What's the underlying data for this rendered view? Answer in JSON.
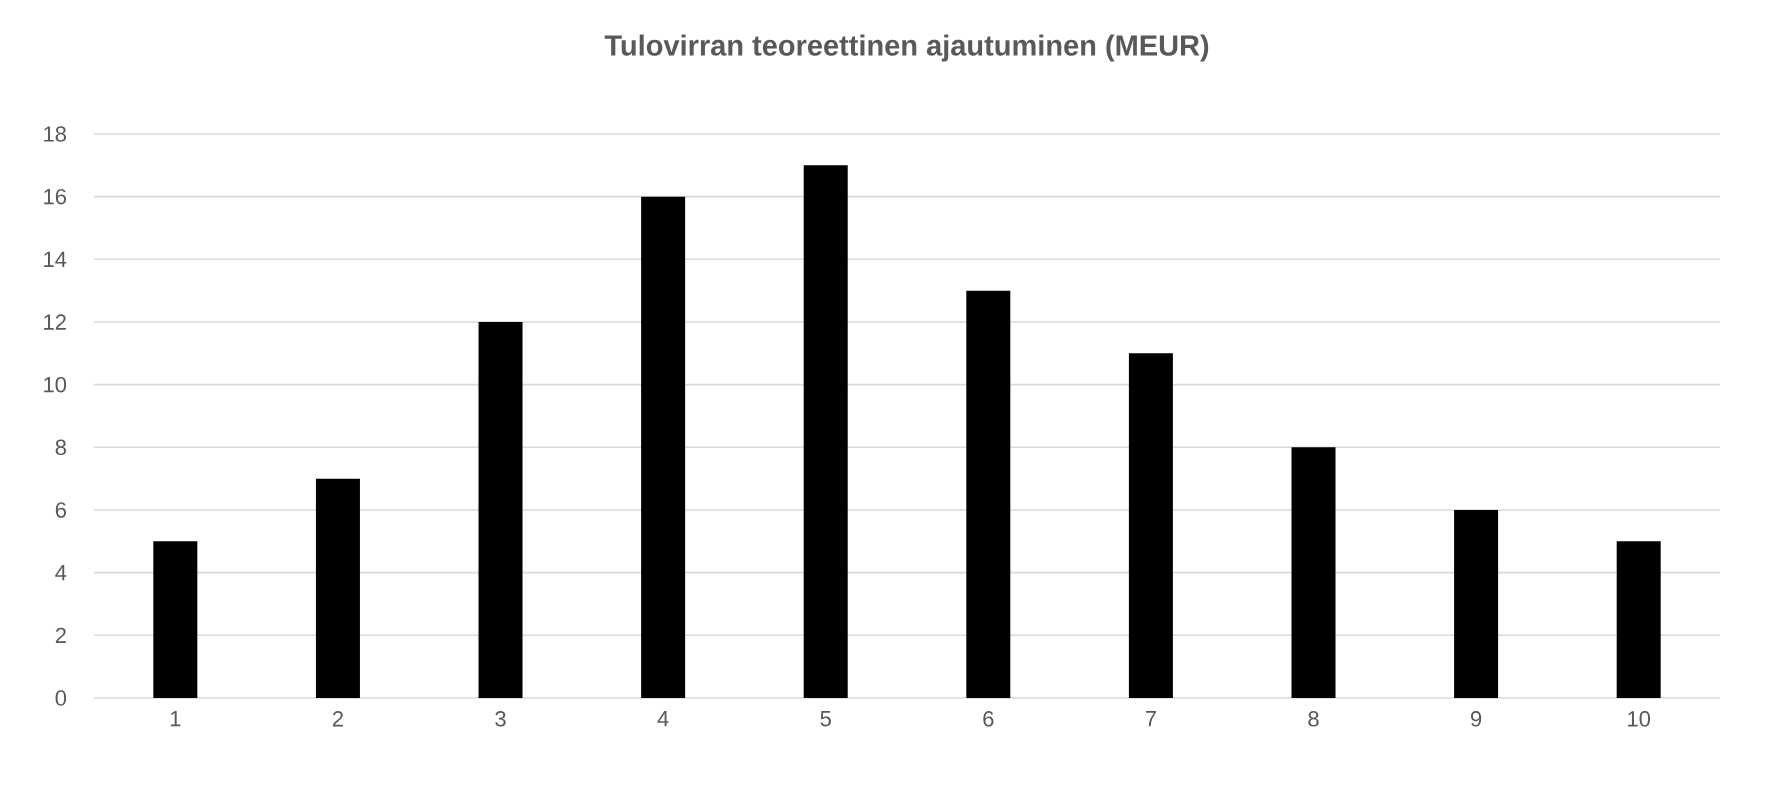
{
  "chart_data": {
    "type": "bar",
    "title": "Tulovirran teoreettinen ajautuminen (MEUR)",
    "categories": [
      "1",
      "2",
      "3",
      "4",
      "5",
      "6",
      "7",
      "8",
      "9",
      "10"
    ],
    "values": [
      5,
      7,
      12,
      16,
      17,
      13,
      11,
      8,
      6,
      5
    ],
    "color": "#000000",
    "ylim": [
      0,
      18
    ],
    "yticks": [
      0,
      2,
      4,
      6,
      8,
      10,
      12,
      14,
      16,
      18
    ],
    "grid": "y"
  }
}
